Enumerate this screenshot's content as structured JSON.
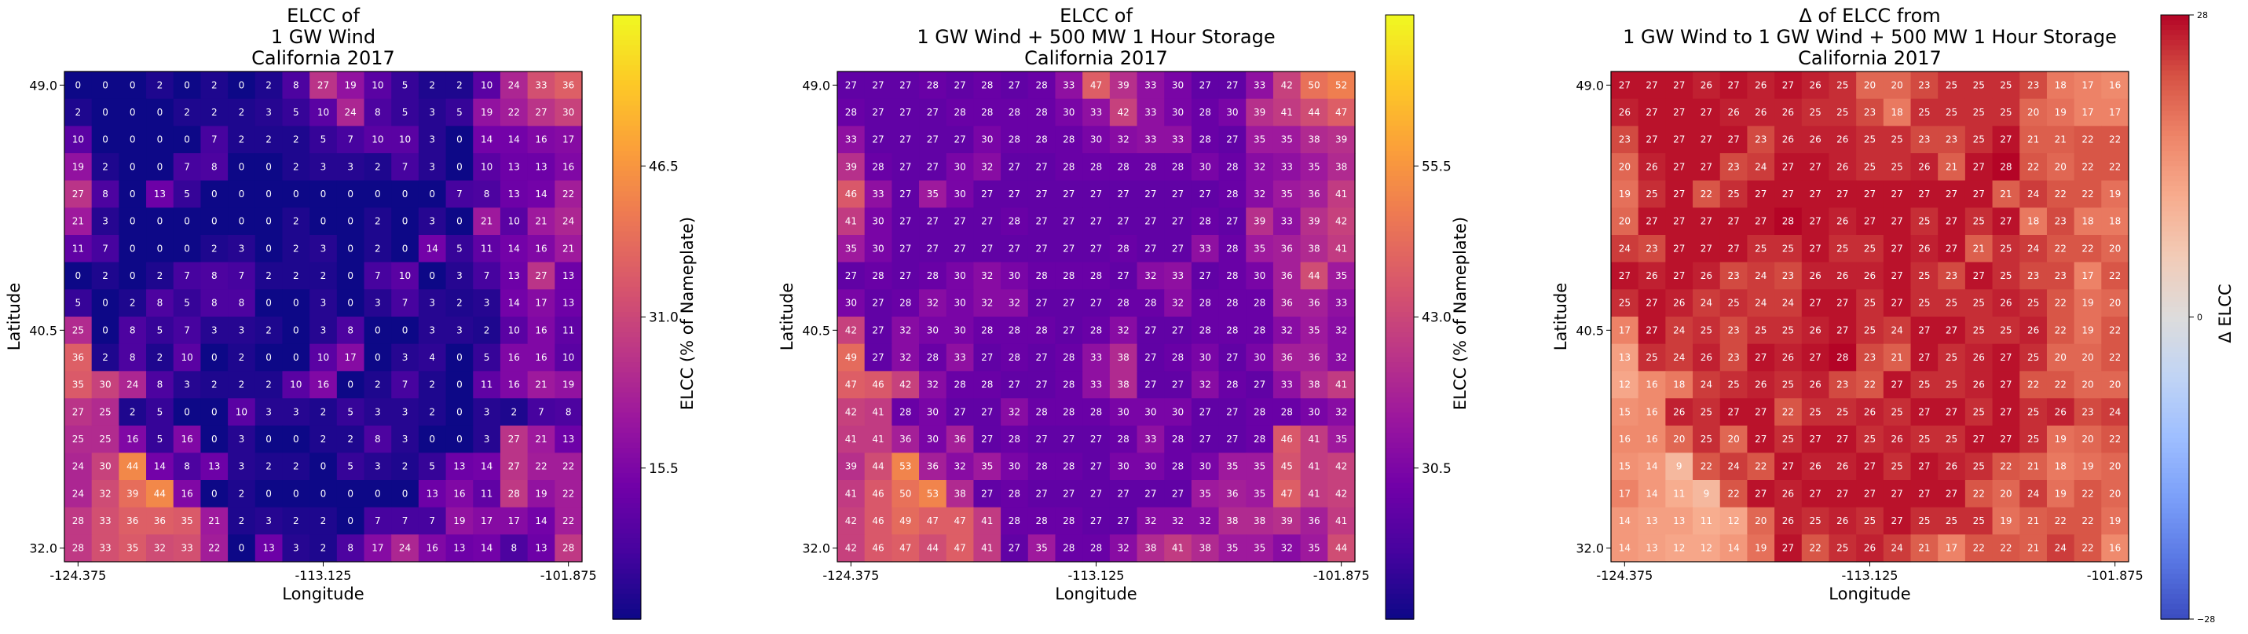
{
  "colors": {
    "plasma": [
      "#0d0887",
      "#46039f",
      "#7201a8",
      "#9c179e",
      "#bd3786",
      "#d8576b",
      "#ed7953",
      "#fb9f3a",
      "#fdca26",
      "#f0f921"
    ],
    "coolwarm": [
      "#3b4cc0",
      "#5a78e4",
      "#7b9ff9",
      "#9ebeff",
      "#c0d4f5",
      "#dddcdc",
      "#f2cbb7",
      "#f7ac8e",
      "#ee8468",
      "#d65244",
      "#b40426"
    ],
    "cell_text": "#ffffff",
    "frame": "#000000"
  },
  "chart_data": [
    {
      "type": "heatmap",
      "title": "ELCC of\n1 GW Wind\nCalifornia 2017",
      "xlabel": "Longitude",
      "ylabel": "Latitude",
      "x_tick_labels": [
        "-124.375",
        "-113.125",
        "-101.875"
      ],
      "y_tick_labels": [
        "49.0",
        "40.5",
        "32.0"
      ],
      "colormap": "plasma",
      "colorbar": {
        "label": "ELCC (% of Nameplate)",
        "range": [
          0,
          62
        ],
        "ticks": [
          "15.5",
          "31.0",
          "46.5"
        ]
      },
      "grid_on": false,
      "values": [
        [
          0,
          0,
          0,
          2,
          0,
          2,
          0,
          2,
          8,
          27,
          19,
          10,
          5,
          2,
          2,
          10,
          24,
          33,
          36
        ],
        [
          2,
          0,
          0,
          0,
          2,
          2,
          2,
          3,
          5,
          10,
          24,
          8,
          5,
          3,
          5,
          19,
          22,
          27,
          30
        ],
        [
          10,
          0,
          0,
          0,
          0,
          7,
          2,
          2,
          2,
          5,
          7,
          10,
          10,
          3,
          0,
          14,
          14,
          16,
          17
        ],
        [
          19,
          2,
          0,
          0,
          7,
          8,
          0,
          0,
          2,
          3,
          3,
          2,
          7,
          3,
          0,
          10,
          13,
          13,
          16
        ],
        [
          27,
          8,
          0,
          13,
          5,
          0,
          0,
          0,
          0,
          0,
          0,
          0,
          0,
          0,
          7,
          8,
          13,
          14,
          22
        ],
        [
          21,
          3,
          0,
          0,
          0,
          0,
          0,
          0,
          2,
          0,
          0,
          2,
          0,
          3,
          0,
          21,
          10,
          21,
          24
        ],
        [
          11,
          7,
          0,
          0,
          0,
          2,
          3,
          0,
          2,
          3,
          0,
          2,
          0,
          14,
          5,
          11,
          14,
          16,
          21
        ],
        [
          0,
          2,
          0,
          2,
          7,
          8,
          7,
          2,
          2,
          2,
          0,
          7,
          10,
          0,
          3,
          7,
          13,
          27,
          13
        ],
        [
          5,
          0,
          2,
          8,
          5,
          8,
          8,
          0,
          0,
          3,
          0,
          3,
          7,
          3,
          2,
          3,
          14,
          17,
          13
        ],
        [
          25,
          0,
          8,
          5,
          7,
          3,
          3,
          2,
          0,
          3,
          8,
          0,
          0,
          3,
          3,
          2,
          10,
          16,
          11
        ],
        [
          36,
          2,
          8,
          2,
          10,
          0,
          2,
          0,
          0,
          10,
          17,
          0,
          3,
          4,
          0,
          5,
          16,
          16,
          10
        ],
        [
          35,
          30,
          24,
          8,
          3,
          2,
          2,
          2,
          10,
          16,
          0,
          2,
          7,
          2,
          0,
          11,
          16,
          21,
          19
        ],
        [
          27,
          25,
          2,
          5,
          0,
          0,
          10,
          3,
          3,
          2,
          5,
          3,
          3,
          2,
          0,
          3,
          2,
          7,
          8
        ],
        [
          25,
          25,
          16,
          5,
          16,
          0,
          3,
          0,
          0,
          2,
          2,
          8,
          3,
          0,
          0,
          3,
          27,
          21,
          13
        ],
        [
          24,
          30,
          44,
          14,
          8,
          13,
          3,
          2,
          2,
          0,
          5,
          3,
          2,
          5,
          13,
          14,
          27,
          22,
          22
        ],
        [
          24,
          32,
          39,
          44,
          16,
          0,
          2,
          0,
          0,
          0,
          0,
          0,
          0,
          13,
          16,
          11,
          28,
          19,
          22
        ],
        [
          28,
          33,
          36,
          36,
          35,
          21,
          2,
          3,
          2,
          2,
          0,
          7,
          7,
          7,
          19,
          17,
          17,
          14,
          22
        ],
        [
          28,
          33,
          35,
          32,
          33,
          22,
          0,
          13,
          3,
          2,
          8,
          17,
          24,
          16,
          13,
          14,
          8,
          13,
          28
        ]
      ]
    },
    {
      "type": "heatmap",
      "title": "ELCC of\n1 GW Wind + 500 MW 1 Hour Storage\nCalifornia 2017",
      "xlabel": "Longitude",
      "ylabel": "Latitude",
      "x_tick_labels": [
        "-124.375",
        "-113.125",
        "-101.875"
      ],
      "y_tick_labels": [
        "49.0",
        "40.5",
        "32.0"
      ],
      "colormap": "plasma",
      "colorbar": {
        "label": "ELCC (% of Nameplate)",
        "range": [
          18,
          68
        ],
        "ticks": [
          "30.5",
          "43.0",
          "55.5"
        ]
      },
      "grid_on": false,
      "values": [
        [
          27,
          27,
          27,
          28,
          27,
          28,
          27,
          28,
          33,
          47,
          39,
          33,
          30,
          27,
          27,
          33,
          42,
          50,
          52
        ],
        [
          28,
          27,
          27,
          27,
          28,
          28,
          28,
          28,
          30,
          33,
          42,
          33,
          30,
          28,
          30,
          39,
          41,
          44,
          47
        ],
        [
          33,
          27,
          27,
          27,
          27,
          30,
          28,
          28,
          28,
          30,
          32,
          33,
          33,
          28,
          27,
          35,
          35,
          38,
          39
        ],
        [
          39,
          28,
          27,
          27,
          30,
          32,
          27,
          27,
          28,
          28,
          28,
          28,
          28,
          30,
          28,
          32,
          33,
          35,
          38
        ],
        [
          46,
          33,
          27,
          35,
          30,
          27,
          27,
          27,
          27,
          27,
          27,
          27,
          27,
          27,
          28,
          32,
          35,
          36,
          41
        ],
        [
          41,
          30,
          27,
          27,
          27,
          27,
          28,
          27,
          27,
          27,
          27,
          27,
          27,
          28,
          27,
          39,
          33,
          39,
          42
        ],
        [
          35,
          30,
          27,
          27,
          27,
          27,
          27,
          27,
          27,
          27,
          28,
          27,
          27,
          33,
          28,
          35,
          36,
          38,
          41
        ],
        [
          27,
          28,
          27,
          28,
          30,
          32,
          30,
          28,
          28,
          28,
          27,
          32,
          33,
          27,
          28,
          30,
          36,
          44,
          35
        ],
        [
          30,
          27,
          28,
          32,
          30,
          32,
          32,
          27,
          27,
          27,
          28,
          28,
          32,
          28,
          28,
          28,
          36,
          36,
          33
        ],
        [
          42,
          27,
          32,
          30,
          30,
          28,
          28,
          28,
          27,
          28,
          32,
          27,
          27,
          28,
          28,
          28,
          32,
          35,
          32
        ],
        [
          49,
          27,
          32,
          28,
          33,
          27,
          28,
          27,
          28,
          33,
          38,
          27,
          28,
          30,
          27,
          30,
          36,
          36,
          32
        ],
        [
          47,
          46,
          42,
          32,
          28,
          28,
          27,
          27,
          28,
          33,
          38,
          27,
          27,
          32,
          28,
          27,
          33,
          38,
          41
        ],
        [
          42,
          41,
          28,
          30,
          27,
          27,
          32,
          28,
          28,
          28,
          30,
          30,
          30,
          27,
          27,
          28,
          28,
          30,
          32
        ],
        [
          41,
          41,
          36,
          30,
          36,
          27,
          28,
          27,
          27,
          27,
          28,
          33,
          28,
          27,
          27,
          28,
          46,
          41,
          35
        ],
        [
          39,
          44,
          53,
          36,
          32,
          35,
          30,
          28,
          28,
          27,
          30,
          30,
          28,
          30,
          35,
          35,
          45,
          41,
          42
        ],
        [
          41,
          46,
          50,
          53,
          38,
          27,
          28,
          27,
          27,
          27,
          27,
          27,
          27,
          35,
          36,
          35,
          47,
          41,
          42
        ],
        [
          42,
          46,
          49,
          47,
          47,
          41,
          28,
          28,
          28,
          27,
          27,
          32,
          32,
          32,
          38,
          38,
          39,
          36,
          41
        ],
        [
          42,
          46,
          47,
          44,
          47,
          41,
          27,
          35,
          28,
          28,
          32,
          38,
          41,
          38,
          35,
          35,
          32,
          35,
          44
        ]
      ]
    },
    {
      "type": "heatmap",
      "title": "Δ of ELCC from\n1 GW Wind to 1 GW Wind + 500 MW 1 Hour Storage\nCalifornia 2017",
      "xlabel": "Longitude",
      "ylabel": "Latitude",
      "x_tick_labels": [
        "-124.375",
        "-113.125",
        "-101.875"
      ],
      "y_tick_labels": [
        "49.0",
        "40.5",
        "32.0"
      ],
      "colormap": "coolwarm",
      "colorbar": {
        "label": "Δ ELCC",
        "range": [
          -28,
          28
        ],
        "ticks": [
          "−28",
          "0",
          "28"
        ]
      },
      "grid_on": false,
      "values": [
        [
          27,
          27,
          27,
          26,
          27,
          26,
          27,
          26,
          25,
          20,
          20,
          23,
          25,
          25,
          25,
          23,
          18,
          17,
          16
        ],
        [
          26,
          27,
          27,
          27,
          26,
          26,
          26,
          25,
          25,
          23,
          18,
          25,
          25,
          25,
          25,
          20,
          19,
          17,
          17
        ],
        [
          23,
          27,
          27,
          27,
          27,
          23,
          26,
          26,
          26,
          25,
          25,
          23,
          23,
          25,
          27,
          21,
          21,
          22,
          22
        ],
        [
          20,
          26,
          27,
          27,
          23,
          24,
          27,
          27,
          26,
          25,
          25,
          26,
          21,
          27,
          28,
          22,
          20,
          22,
          22
        ],
        [
          19,
          25,
          27,
          22,
          25,
          27,
          27,
          27,
          27,
          27,
          27,
          27,
          27,
          27,
          21,
          24,
          22,
          22,
          19
        ],
        [
          20,
          27,
          27,
          27,
          27,
          27,
          28,
          27,
          26,
          27,
          27,
          25,
          27,
          25,
          27,
          18,
          23,
          18,
          18
        ],
        [
          24,
          23,
          27,
          27,
          27,
          25,
          25,
          27,
          25,
          25,
          27,
          26,
          27,
          21,
          25,
          24,
          22,
          22,
          20
        ],
        [
          27,
          26,
          27,
          26,
          23,
          24,
          23,
          26,
          26,
          26,
          27,
          25,
          23,
          27,
          25,
          23,
          23,
          17,
          22
        ],
        [
          25,
          27,
          26,
          24,
          25,
          24,
          24,
          27,
          27,
          25,
          27,
          25,
          25,
          25,
          26,
          25,
          22,
          19,
          20
        ],
        [
          17,
          27,
          24,
          25,
          23,
          25,
          25,
          26,
          27,
          25,
          24,
          27,
          27,
          25,
          25,
          26,
          22,
          19,
          22
        ],
        [
          13,
          25,
          24,
          26,
          23,
          27,
          26,
          27,
          28,
          23,
          21,
          27,
          25,
          26,
          27,
          25,
          20,
          20,
          22
        ],
        [
          12,
          16,
          18,
          24,
          25,
          26,
          25,
          26,
          23,
          22,
          27,
          25,
          25,
          26,
          27,
          22,
          22,
          20,
          20
        ],
        [
          15,
          16,
          26,
          25,
          27,
          27,
          22,
          25,
          25,
          26,
          25,
          27,
          27,
          25,
          27,
          25,
          26,
          23,
          24
        ],
        [
          16,
          16,
          20,
          25,
          20,
          27,
          25,
          27,
          27,
          25,
          26,
          25,
          25,
          27,
          27,
          25,
          19,
          20,
          22
        ],
        [
          15,
          14,
          9,
          22,
          24,
          22,
          27,
          26,
          26,
          27,
          25,
          27,
          26,
          25,
          22,
          21,
          18,
          19,
          20
        ],
        [
          17,
          14,
          11,
          9,
          22,
          27,
          26,
          27,
          27,
          27,
          27,
          27,
          27,
          22,
          20,
          24,
          19,
          22,
          20
        ],
        [
          14,
          13,
          13,
          11,
          12,
          20,
          26,
          25,
          26,
          25,
          27,
          25,
          25,
          25,
          19,
          21,
          22,
          22,
          19
        ],
        [
          14,
          13,
          12,
          12,
          14,
          19,
          27,
          22,
          25,
          26,
          24,
          21,
          17,
          22,
          22,
          21,
          24,
          22,
          16
        ]
      ]
    }
  ]
}
